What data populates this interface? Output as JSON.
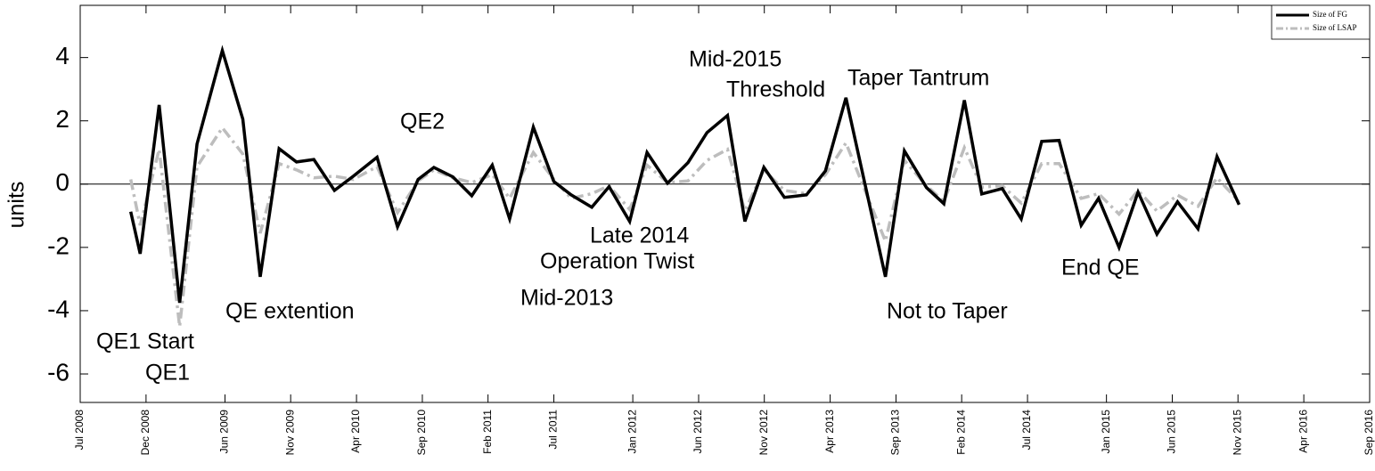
{
  "chart_data": {
    "type": "line",
    "ylabel": "units",
    "xlim": [
      2008.5,
      2016.667
    ],
    "ylim": [
      -6.9,
      5.65
    ],
    "yticks": [
      -6,
      -4,
      -2,
      0,
      2,
      4
    ],
    "hline": 0,
    "xticks": [
      {
        "value": 2008.5,
        "label": "Jul 2008"
      },
      {
        "value": 2008.917,
        "label": "Dec 2008"
      },
      {
        "value": 2009.417,
        "label": "Jun 2009"
      },
      {
        "value": 2009.833,
        "label": "Nov 2009"
      },
      {
        "value": 2010.25,
        "label": "Apr 2010"
      },
      {
        "value": 2010.667,
        "label": "Sep 2010"
      },
      {
        "value": 2011.083,
        "label": "Feb 2011"
      },
      {
        "value": 2011.5,
        "label": "Jul 2011"
      },
      {
        "value": 2012.0,
        "label": "Jan 2012"
      },
      {
        "value": 2012.417,
        "label": "Jun 2012"
      },
      {
        "value": 2012.833,
        "label": "Nov 2012"
      },
      {
        "value": 2013.25,
        "label": "Apr 2013"
      },
      {
        "value": 2013.667,
        "label": "Sep 2013"
      },
      {
        "value": 2014.083,
        "label": "Feb 2014"
      },
      {
        "value": 2014.5,
        "label": "Jul 2014"
      },
      {
        "value": 2015.0,
        "label": "Jan 2015"
      },
      {
        "value": 2015.417,
        "label": "Jun 2015"
      },
      {
        "value": 2015.833,
        "label": "Nov 2015"
      },
      {
        "value": 2016.25,
        "label": "Apr 2016"
      },
      {
        "value": 2016.667,
        "label": "Sep 2016"
      }
    ],
    "x": [
      2008.82,
      2008.88,
      2009.0,
      2009.13,
      2009.24,
      2009.4,
      2009.53,
      2009.64,
      2009.76,
      2009.87,
      2009.98,
      2010.11,
      2010.23,
      2010.38,
      2010.51,
      2010.64,
      2010.74,
      2010.86,
      2010.98,
      2011.11,
      2011.22,
      2011.37,
      2011.5,
      2011.61,
      2011.74,
      2011.85,
      2011.98,
      2012.09,
      2012.22,
      2012.35,
      2012.47,
      2012.6,
      2012.71,
      2012.83,
      2012.96,
      2013.1,
      2013.22,
      2013.35,
      2013.6,
      2013.72,
      2013.86,
      2013.97,
      2014.1,
      2014.21,
      2014.34,
      2014.46,
      2014.59,
      2014.7,
      2014.84,
      2014.95,
      2015.08,
      2015.2,
      2015.32,
      2015.45,
      2015.58,
      2015.7,
      2015.84
    ],
    "series": [
      {
        "name": "Size of FG",
        "color": "#000000",
        "dash": false,
        "values": [
          -0.87,
          -2.2,
          2.5,
          -3.75,
          1.27,
          4.22,
          2.05,
          -2.93,
          1.12,
          0.7,
          0.78,
          -0.2,
          0.25,
          0.85,
          -1.35,
          0.15,
          0.53,
          0.23,
          -0.37,
          0.6,
          -1.1,
          1.8,
          0.08,
          -0.34,
          -0.73,
          -0.08,
          -1.18,
          1.0,
          0.03,
          0.68,
          1.63,
          2.17,
          -1.18,
          0.53,
          -0.42,
          -0.34,
          0.42,
          2.73,
          -2.93,
          1.05,
          -0.11,
          -0.62,
          2.65,
          -0.31,
          -0.14,
          -1.1,
          1.35,
          1.38,
          -1.3,
          -0.45,
          -2.0,
          -0.25,
          -1.58,
          -0.56,
          -1.41,
          0.87,
          -0.65
        ]
      },
      {
        "name": "Size of LSAP",
        "color": "#bdbdbd",
        "dash": true,
        "values": [
          0.15,
          -1.3,
          1.1,
          -4.5,
          0.55,
          1.78,
          0.95,
          -1.55,
          0.65,
          0.45,
          0.2,
          0.25,
          0.15,
          0.55,
          -0.9,
          0.1,
          0.45,
          0.2,
          0.05,
          0.3,
          -0.45,
          1.0,
          0.15,
          -0.45,
          -0.3,
          -0.05,
          -0.8,
          0.6,
          0.05,
          0.1,
          0.75,
          1.1,
          -0.85,
          0.45,
          -0.2,
          -0.3,
          0.3,
          1.3,
          -1.8,
          0.75,
          -0.05,
          -0.55,
          1.15,
          -0.1,
          -0.05,
          -0.6,
          0.65,
          0.65,
          -0.45,
          -0.3,
          -0.95,
          -0.2,
          -0.85,
          -0.35,
          -0.7,
          0.2,
          -0.55
        ]
      }
    ],
    "annotations": [
      "QE1 Start",
      "QE1",
      "QE extention",
      "QE2",
      "Mid-2013",
      "Late 2014",
      "Operation Twist",
      "Mid-2015",
      "Threshold",
      "Taper Tantrum",
      "Not to Taper",
      "End QE"
    ],
    "legend": "upper right"
  }
}
